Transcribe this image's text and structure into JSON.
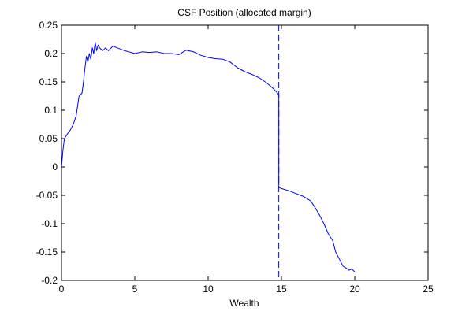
{
  "chart_data": {
    "type": "line",
    "title": "CSF Position (allocated margin)",
    "xlabel": "Wealth",
    "ylabel": "",
    "xlim": [
      0,
      25
    ],
    "ylim": [
      -0.2,
      0.25
    ],
    "xticks": [
      0,
      5,
      10,
      15,
      20,
      25
    ],
    "yticks": [
      -0.2,
      -0.15,
      -0.1,
      -0.05,
      0,
      0.05,
      0.1,
      0.15,
      0.2,
      0.25
    ],
    "xtick_labels": [
      "0",
      "5",
      "10",
      "15",
      "20",
      "25"
    ],
    "ytick_labels": [
      "-0.2",
      "-0.15",
      "-0.1",
      "-0.05",
      "0",
      "0.05",
      "0.1",
      "0.15",
      "0.2",
      "0.25"
    ],
    "grid": false,
    "series": [
      {
        "color": "#0000ff",
        "style": "solid",
        "x": [
          0,
          0.1,
          0.2,
          0.4,
          0.6,
          0.8,
          1.0,
          1.2,
          1.4,
          1.5,
          1.6,
          1.7,
          1.8,
          1.9,
          2.0,
          2.1,
          2.2,
          2.3,
          2.4,
          2.5,
          2.6,
          2.8,
          3.0,
          3.2,
          3.5,
          3.8,
          4.0,
          4.3,
          4.6,
          5.0,
          5.5,
          6.0,
          6.5,
          7.0,
          7.5,
          8.0,
          8.5,
          9.0,
          9.5,
          10.0,
          10.5,
          11.0,
          11.5,
          12.0,
          12.5,
          13.0,
          13.5,
          14.0,
          14.5,
          14.8,
          14.82,
          14.82,
          15.0,
          15.5,
          16.0,
          16.5,
          17.0,
          17.3,
          17.6,
          17.9,
          18.2,
          18.5,
          18.7,
          19.0,
          19.2,
          19.4,
          19.6,
          19.8,
          20.0
        ],
        "y": [
          0.0,
          0.03,
          0.05,
          0.058,
          0.065,
          0.075,
          0.09,
          0.125,
          0.13,
          0.15,
          0.175,
          0.195,
          0.185,
          0.2,
          0.19,
          0.21,
          0.2,
          0.22,
          0.205,
          0.215,
          0.21,
          0.205,
          0.21,
          0.205,
          0.213,
          0.21,
          0.208,
          0.205,
          0.203,
          0.2,
          0.203,
          0.202,
          0.203,
          0.2,
          0.2,
          0.198,
          0.206,
          0.203,
          0.197,
          0.193,
          0.191,
          0.19,
          0.185,
          0.175,
          0.168,
          0.163,
          0.157,
          0.148,
          0.137,
          0.128,
          0.128,
          -0.036,
          -0.038,
          -0.042,
          -0.047,
          -0.052,
          -0.06,
          -0.072,
          -0.085,
          -0.1,
          -0.118,
          -0.13,
          -0.15,
          -0.165,
          -0.175,
          -0.178,
          -0.182,
          -0.18,
          -0.185
        ]
      }
    ],
    "reference_lines": [
      {
        "orientation": "vertical",
        "x": 14.82,
        "color": "#0000ff",
        "style": "dashed"
      }
    ]
  }
}
